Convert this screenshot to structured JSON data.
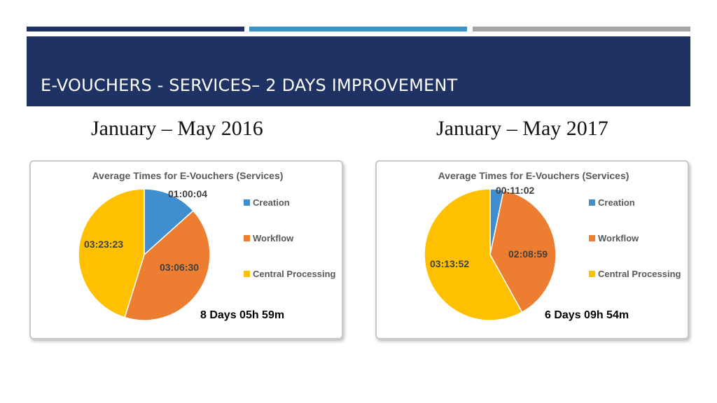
{
  "slide": {
    "title": "E-VOUCHERS - SERVICES– 2 DAYS IMPROVEMENT",
    "bars": [
      "#1e3264",
      "#3a93c6",
      "#a6a6a6"
    ],
    "title_band_color": "#1e3264"
  },
  "columns": [
    {
      "period": "January – May 2016"
    },
    {
      "period": "January – May 2017"
    }
  ],
  "chart_data": [
    {
      "type": "pie",
      "title": "Average Times for E-Vouchers (Services)",
      "total": "8 Days 05h 59m",
      "legend_position": "right",
      "slices": [
        {
          "name": "Creation",
          "value_seconds": 3604,
          "label": "01:00:04",
          "color": "#3e8ed0"
        },
        {
          "name": "Workflow",
          "value_seconds": 11190,
          "label": "03:06:30",
          "color": "#ed7d31"
        },
        {
          "name": "Central Processing",
          "value_seconds": 12203,
          "label": "03:23:23",
          "color": "#ffc000"
        }
      ]
    },
    {
      "type": "pie",
      "title": "Average Times for E-Vouchers (Services)",
      "total": "6 Days 09h 54m",
      "legend_position": "right",
      "slices": [
        {
          "name": "Creation",
          "value_seconds": 662,
          "label": "00:11:02",
          "color": "#3e8ed0"
        },
        {
          "name": "Workflow",
          "value_seconds": 7739,
          "label": "02:08:59",
          "color": "#ed7d31"
        },
        {
          "name": "Central Processing",
          "value_seconds": 11632,
          "label": "03:13:52",
          "color": "#ffc000"
        }
      ]
    }
  ]
}
